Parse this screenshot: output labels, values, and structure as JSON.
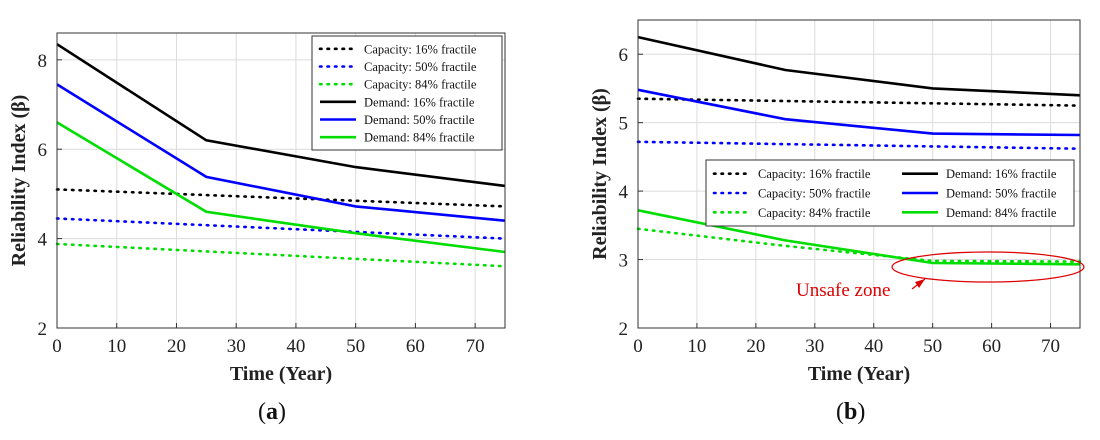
{
  "chart_data": [
    {
      "type": "line",
      "panel_label_open": "(",
      "panel_label_letter": "a",
      "panel_label_close": ")",
      "xlabel": "Time (Year)",
      "ylabel": "Reliability Index (β)",
      "xlim": [
        0,
        75
      ],
      "ylim": [
        2,
        8.6
      ],
      "xticks": [
        0,
        10,
        20,
        30,
        40,
        50,
        60,
        70
      ],
      "yticks": [
        2,
        4,
        6,
        8
      ],
      "grid": true,
      "legend_position": "top-right",
      "series": [
        {
          "name": "Capacity: 16% fractile",
          "color": "#000000",
          "style": "dotted",
          "x": [
            0,
            75
          ],
          "y": [
            5.1,
            4.72
          ]
        },
        {
          "name": "Capacity: 50% fractile",
          "color": "#0000ff",
          "style": "dotted",
          "x": [
            0,
            75
          ],
          "y": [
            4.45,
            4.0
          ]
        },
        {
          "name": "Capacity: 84% fractile",
          "color": "#00dd00",
          "style": "dotted",
          "x": [
            0,
            75
          ],
          "y": [
            3.88,
            3.38
          ]
        },
        {
          "name": "Demand: 16% fractile",
          "color": "#000000",
          "style": "solid",
          "x": [
            0,
            25,
            50,
            75
          ],
          "y": [
            8.35,
            6.2,
            5.6,
            5.18
          ]
        },
        {
          "name": "Demand: 50% fractile",
          "color": "#0000ff",
          "style": "solid",
          "x": [
            0,
            25,
            50,
            75
          ],
          "y": [
            7.45,
            5.38,
            4.72,
            4.4
          ]
        },
        {
          "name": "Demand: 84% fractile",
          "color": "#00dd00",
          "style": "solid",
          "x": [
            0,
            25,
            50,
            75
          ],
          "y": [
            6.6,
            4.6,
            4.12,
            3.7
          ]
        }
      ]
    },
    {
      "type": "line",
      "panel_label_open": "(",
      "panel_label_letter": "b",
      "panel_label_close": ")",
      "xlabel": "Time (Year)",
      "ylabel": "Reliability Index (β)",
      "xlim": [
        0,
        75
      ],
      "ylim": [
        2,
        6.5
      ],
      "xticks": [
        0,
        10,
        20,
        30,
        40,
        50,
        60,
        70
      ],
      "yticks": [
        2,
        3,
        4,
        5,
        6
      ],
      "grid": true,
      "legend_position": "center-right",
      "annotation": {
        "text": "Unsafe zone",
        "color": "#dd0000",
        "target_x": 50,
        "target_y": 2.95
      },
      "series": [
        {
          "name": "Capacity: 16% fractile",
          "color": "#000000",
          "style": "dotted",
          "x": [
            0,
            75
          ],
          "y": [
            5.35,
            5.25
          ]
        },
        {
          "name": "Capacity: 50% fractile",
          "color": "#0000ff",
          "style": "dotted",
          "x": [
            0,
            75
          ],
          "y": [
            4.72,
            4.62
          ]
        },
        {
          "name": "Capacity: 84% fractile",
          "color": "#00dd00",
          "style": "dotted",
          "x": [
            0,
            25,
            50,
            75
          ],
          "y": [
            3.45,
            3.2,
            2.98,
            2.97
          ]
        },
        {
          "name": "Demand: 16% fractile",
          "color": "#000000",
          "style": "solid",
          "x": [
            0,
            25,
            50,
            75
          ],
          "y": [
            6.25,
            5.77,
            5.5,
            5.4
          ]
        },
        {
          "name": "Demand: 50% fractile",
          "color": "#0000ff",
          "style": "solid",
          "x": [
            0,
            25,
            50,
            75
          ],
          "y": [
            5.48,
            5.05,
            4.84,
            4.82
          ]
        },
        {
          "name": "Demand: 84% fractile",
          "color": "#00dd00",
          "style": "solid",
          "x": [
            0,
            25,
            50,
            75
          ],
          "y": [
            3.72,
            3.28,
            2.95,
            2.93
          ]
        }
      ]
    }
  ]
}
